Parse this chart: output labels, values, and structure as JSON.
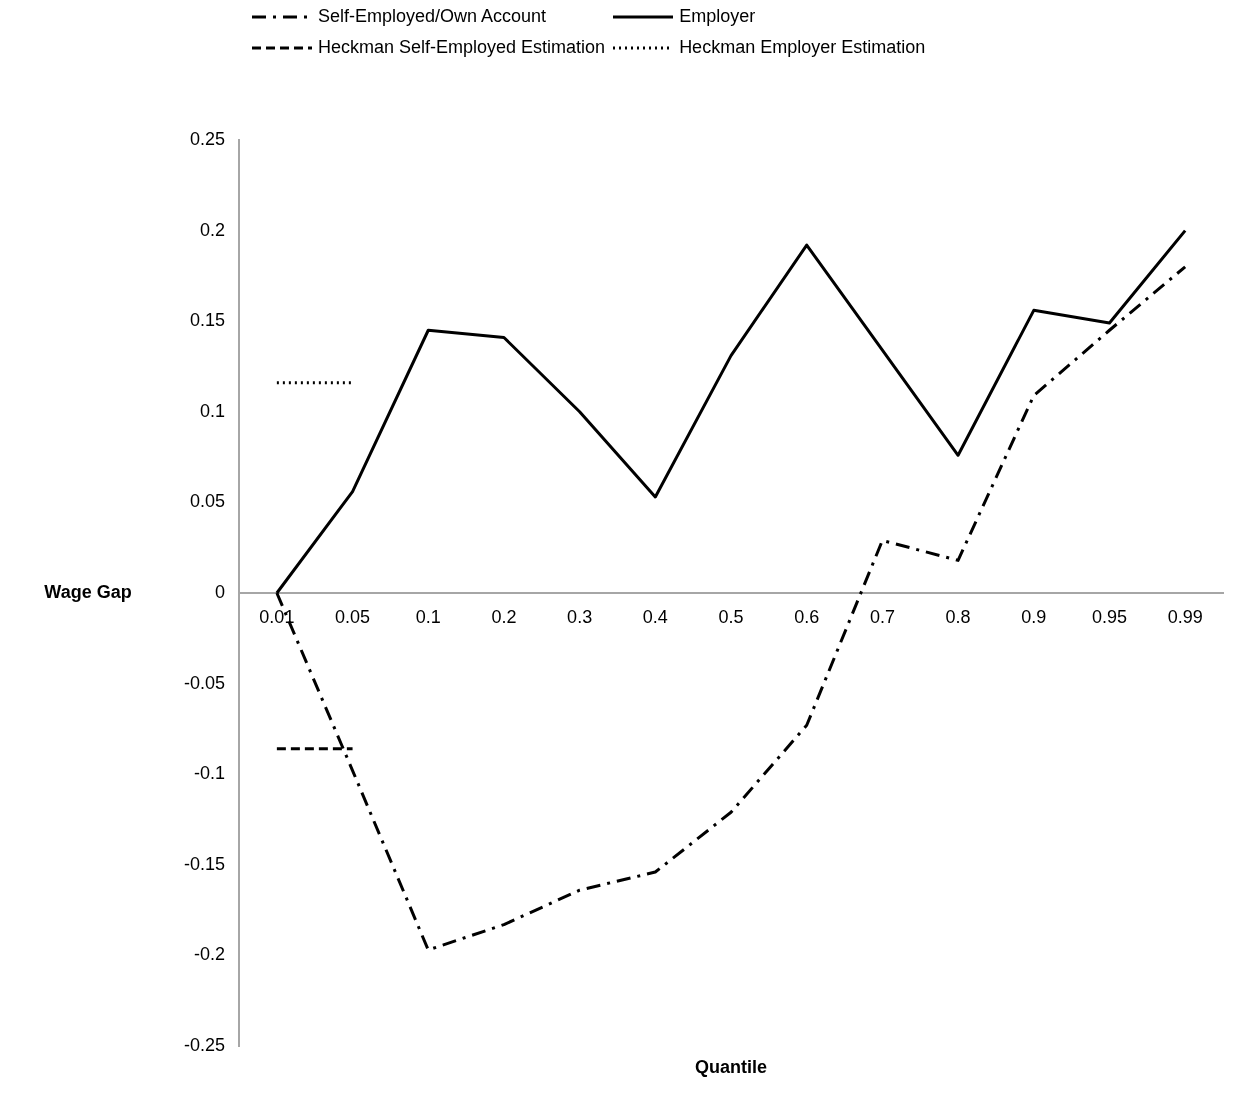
{
  "chart_data": {
    "type": "line",
    "xlabel": "Quantile",
    "ylabel": "Wage Gap",
    "categories": [
      "0.01",
      "0.05",
      "0.1",
      "0.2",
      "0.3",
      "0.4",
      "0.5",
      "0.6",
      "0.7",
      "0.8",
      "0.9",
      "0.95",
      "0.99"
    ],
    "series": [
      {
        "name": "Self-Employed/Own Account",
        "color": "#000000",
        "line_style": "dashdot",
        "values": [
          0,
          -0.098,
          -0.197,
          -0.183,
          -0.164,
          -0.154,
          -0.121,
          -0.073,
          0.029,
          0.018,
          0.109,
          0.145,
          0.18
        ]
      },
      {
        "name": "Employer",
        "color": "#000000",
        "line_style": "solid",
        "values": [
          0,
          0.056,
          0.145,
          0.141,
          0.1,
          0.053,
          0.131,
          0.192,
          0.134,
          0.076,
          0.156,
          0.149,
          0.2
        ]
      },
      {
        "name": "Heckman Self-Employed Estimation",
        "color": "#000000",
        "line_style": "dashed",
        "values": [
          -0.086,
          -0.086,
          null,
          null,
          null,
          null,
          null,
          null,
          null,
          null,
          null,
          null,
          null
        ]
      },
      {
        "name": "Heckman Employer Estimation",
        "color": "#000000",
        "line_style": "dotted",
        "values": [
          0.116,
          0.116,
          null,
          null,
          null,
          null,
          null,
          null,
          null,
          null,
          null,
          null,
          null
        ]
      }
    ],
    "ylim": [
      -0.25,
      0.25
    ],
    "yticks": [
      -0.25,
      -0.2,
      -0.15,
      -0.1,
      -0.05,
      0,
      0.05,
      0.1,
      0.15,
      0.2,
      0.25
    ],
    "grid": false,
    "legend": "top",
    "marker": "none"
  }
}
